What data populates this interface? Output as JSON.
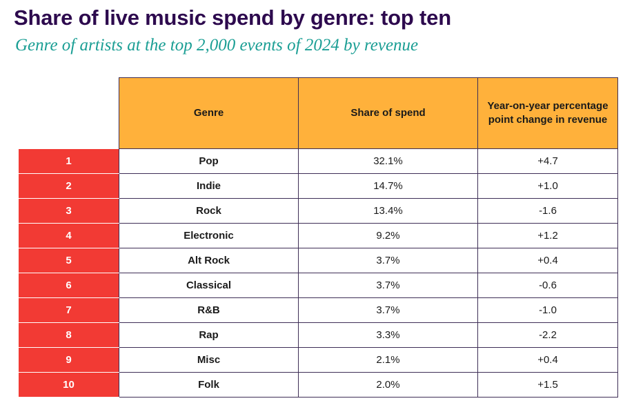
{
  "title": "Share of live music spend by genre: top ten",
  "subtitle": "Genre of artists at the top 2,000 events of 2024 by revenue",
  "chart_data": {
    "type": "table",
    "columns": [
      "Genre",
      "Share of spend",
      "Year-on-year percentage point change in revenue"
    ],
    "rows": [
      {
        "rank": "1",
        "genre": "Pop",
        "share": "32.1%",
        "change": "+4.7"
      },
      {
        "rank": "2",
        "genre": "Indie",
        "share": "14.7%",
        "change": "+1.0"
      },
      {
        "rank": "3",
        "genre": "Rock",
        "share": "13.4%",
        "change": "-1.6"
      },
      {
        "rank": "4",
        "genre": "Electronic",
        "share": "9.2%",
        "change": "+1.2"
      },
      {
        "rank": "5",
        "genre": "Alt Rock",
        "share": "3.7%",
        "change": "+0.4"
      },
      {
        "rank": "6",
        "genre": "Classical",
        "share": "3.7%",
        "change": "-0.6"
      },
      {
        "rank": "7",
        "genre": "R&B",
        "share": "3.7%",
        "change": "-1.0"
      },
      {
        "rank": "8",
        "genre": "Rap",
        "share": "3.3%",
        "change": "-2.2"
      },
      {
        "rank": "9",
        "genre": "Misc",
        "share": "2.1%",
        "change": "+0.4"
      },
      {
        "rank": "10",
        "genre": "Folk",
        "share": "2.0%",
        "change": "+1.5"
      }
    ]
  },
  "colors": {
    "title": "#2d0a4e",
    "subtitle": "#1a9e94",
    "header_fill": "#ffb13b",
    "rank_fill": "#f23a34",
    "border": "#3d2d55"
  }
}
